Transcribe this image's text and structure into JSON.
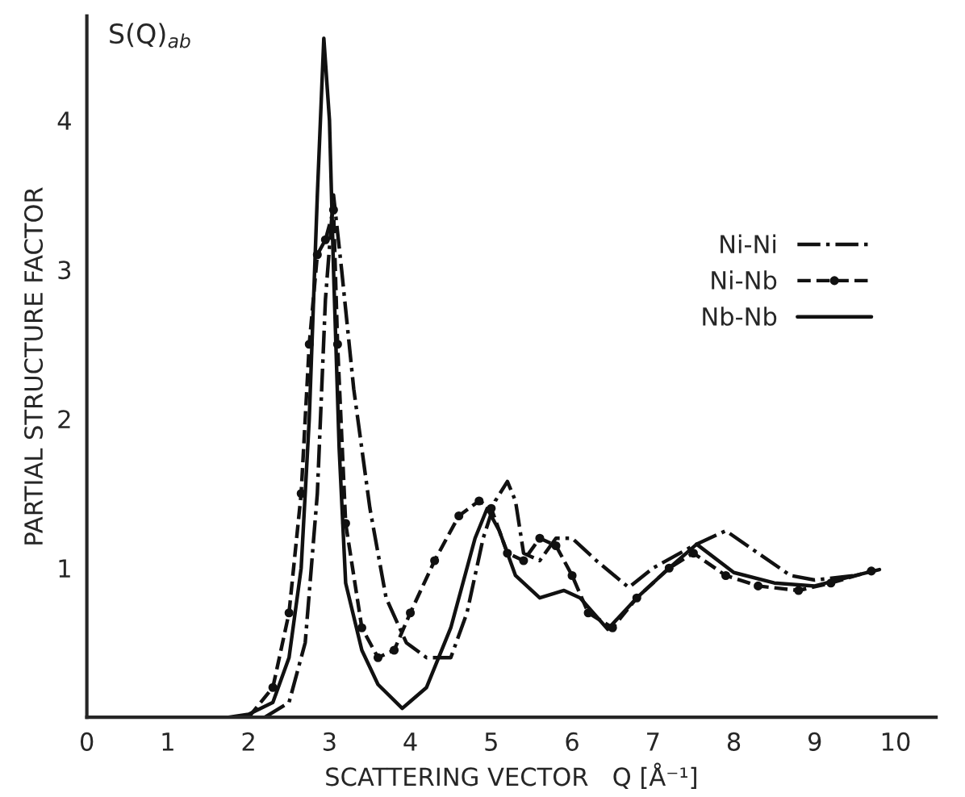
{
  "chart_data": {
    "type": "line",
    "xlabel": "SCATTERING VECTOR   Q [Å⁻¹]",
    "ylabel": "PARTIAL STRUCTURE FACTOR",
    "annotations": [
      "S(Q)$_{ab}$"
    ],
    "xlim": [
      0,
      10.5
    ],
    "xticks": [
      0,
      1,
      2,
      3,
      4,
      5,
      6,
      7,
      8,
      9,
      10
    ],
    "ylim": [
      0,
      4.7
    ],
    "yticks": [
      1,
      2,
      3,
      4
    ],
    "grid": false,
    "legend": "right",
    "series": [
      {
        "name": "Ni-Ni",
        "color": "#111111",
        "line_style": "dashdot",
        "marker": "none",
        "x": [
          2.2,
          2.5,
          2.7,
          2.85,
          2.95,
          3.05,
          3.15,
          3.3,
          3.5,
          3.7,
          3.95,
          4.2,
          4.5,
          4.7,
          4.9,
          5.05,
          5.2,
          5.3,
          5.4,
          5.6,
          5.8,
          6.0,
          6.3,
          6.7,
          7.0,
          7.5,
          7.9,
          8.3,
          8.7,
          9.0,
          9.5
        ],
        "values": [
          0,
          0.1,
          0.5,
          1.5,
          2.8,
          3.5,
          3.0,
          2.2,
          1.4,
          0.8,
          0.5,
          0.4,
          0.4,
          0.7,
          1.2,
          1.45,
          1.58,
          1.45,
          1.1,
          1.05,
          1.2,
          1.2,
          1.05,
          0.87,
          1.0,
          1.15,
          1.25,
          1.1,
          0.95,
          0.92,
          0.95
        ]
      },
      {
        "name": "Ni-Nb",
        "color": "#111111",
        "line_style": "dashed",
        "marker": "circle",
        "x": [
          2.0,
          2.3,
          2.5,
          2.65,
          2.75,
          2.85,
          2.95,
          3.05,
          3.1,
          3.2,
          3.4,
          3.6,
          3.8,
          4.0,
          4.3,
          4.6,
          4.85,
          5.0,
          5.2,
          5.4,
          5.6,
          5.8,
          6.0,
          6.2,
          6.5,
          6.8,
          7.2,
          7.5,
          7.9,
          8.3,
          8.8,
          9.2,
          9.7
        ],
        "values": [
          0,
          0.2,
          0.7,
          1.5,
          2.5,
          3.1,
          3.2,
          3.4,
          2.5,
          1.3,
          0.6,
          0.4,
          0.45,
          0.7,
          1.05,
          1.35,
          1.45,
          1.4,
          1.1,
          1.05,
          1.2,
          1.15,
          0.95,
          0.7,
          0.6,
          0.8,
          1.0,
          1.1,
          0.95,
          0.88,
          0.85,
          0.9,
          0.98
        ]
      },
      {
        "name": "Nb-Nb",
        "color": "#111111",
        "line_style": "solid",
        "marker": "none",
        "x": [
          1.75,
          2.0,
          2.3,
          2.5,
          2.65,
          2.75,
          2.85,
          2.93,
          3.0,
          3.05,
          3.12,
          3.2,
          3.4,
          3.6,
          3.9,
          4.2,
          4.5,
          4.8,
          4.95,
          5.1,
          5.3,
          5.6,
          5.9,
          6.1,
          6.44,
          6.8,
          7.2,
          7.54,
          8.0,
          8.5,
          9.0,
          9.5,
          9.8
        ],
        "values": [
          0,
          0.02,
          0.1,
          0.4,
          1.0,
          2.0,
          3.5,
          4.55,
          4.0,
          3.0,
          1.8,
          0.9,
          0.45,
          0.22,
          0.06,
          0.2,
          0.6,
          1.2,
          1.4,
          1.25,
          0.95,
          0.8,
          0.85,
          0.8,
          0.59,
          0.8,
          1.0,
          1.16,
          0.97,
          0.9,
          0.88,
          0.95,
          0.99
        ]
      }
    ]
  }
}
